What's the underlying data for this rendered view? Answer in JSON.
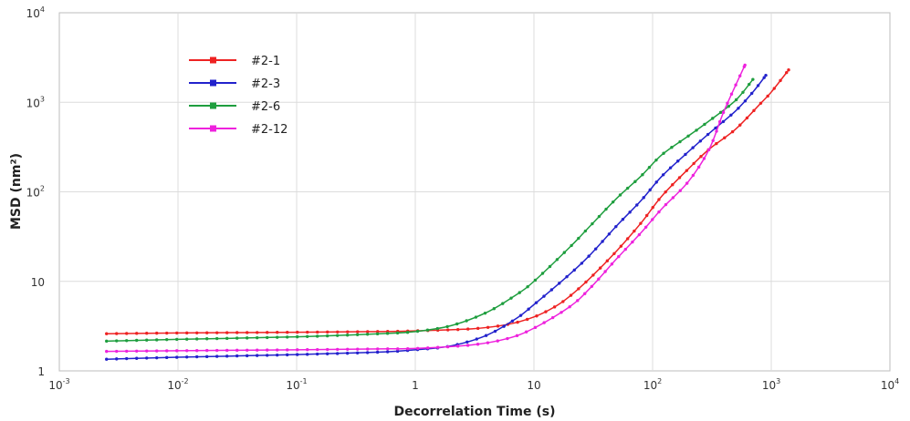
{
  "chart_data": {
    "type": "line",
    "title": "",
    "xlabel": "Decorrelation Time (s)",
    "ylabel": "MSD (nm²)",
    "x_scale": "log",
    "y_scale": "log",
    "xlim": [
      0.001,
      10000
    ],
    "ylim": [
      1,
      10000
    ],
    "grid": true,
    "legend_position": "top-left",
    "x_ticks": [
      {
        "value": 0.001,
        "base": "10",
        "exp": "-3"
      },
      {
        "value": 0.01,
        "base": "10",
        "exp": "-2"
      },
      {
        "value": 0.1,
        "base": "10",
        "exp": "-1"
      },
      {
        "value": 1,
        "base": "1",
        "exp": ""
      },
      {
        "value": 10,
        "base": "10",
        "exp": ""
      },
      {
        "value": 100,
        "base": "10",
        "exp": "2"
      },
      {
        "value": 1000,
        "base": "10",
        "exp": "3"
      },
      {
        "value": 10000,
        "base": "10",
        "exp": "4"
      }
    ],
    "y_ticks": [
      {
        "value": 1,
        "base": "1",
        "exp": ""
      },
      {
        "value": 10,
        "base": "10",
        "exp": ""
      },
      {
        "value": 100,
        "base": "10",
        "exp": "2"
      },
      {
        "value": 1000,
        "base": "10",
        "exp": "3"
      },
      {
        "value": 10000,
        "base": "10",
        "exp": "4"
      }
    ],
    "series": [
      {
        "name": "#2-1",
        "color": "#ee2222",
        "points": [
          [
            0.0025,
            2.6
          ],
          [
            0.01,
            2.65
          ],
          [
            0.1,
            2.7
          ],
          [
            0.5,
            2.75
          ],
          [
            1,
            2.8
          ],
          [
            3,
            2.95
          ],
          [
            6,
            3.3
          ],
          [
            10,
            4.0
          ],
          [
            15,
            5.2
          ],
          [
            20,
            6.8
          ],
          [
            30,
            11
          ],
          [
            50,
            22
          ],
          [
            80,
            45
          ],
          [
            120,
            90
          ],
          [
            200,
            180
          ],
          [
            300,
            300
          ],
          [
            500,
            500
          ],
          [
            800,
            950
          ],
          [
            1000,
            1300
          ],
          [
            1400,
            2300
          ]
        ]
      },
      {
        "name": "#2-3",
        "color": "#2222cc",
        "points": [
          [
            0.0025,
            1.35
          ],
          [
            0.01,
            1.42
          ],
          [
            0.1,
            1.52
          ],
          [
            0.5,
            1.62
          ],
          [
            1,
            1.72
          ],
          [
            2,
            1.9
          ],
          [
            4,
            2.5
          ],
          [
            7,
            3.8
          ],
          [
            10,
            5.5
          ],
          [
            20,
            12
          ],
          [
            30,
            20
          ],
          [
            50,
            42
          ],
          [
            80,
            80
          ],
          [
            120,
            150
          ],
          [
            200,
            280
          ],
          [
            300,
            450
          ],
          [
            500,
            800
          ],
          [
            700,
            1300
          ],
          [
            900,
            2000
          ]
        ]
      },
      {
        "name": "#2-6",
        "color": "#1e9e3e",
        "points": [
          [
            0.0025,
            2.15
          ],
          [
            0.01,
            2.25
          ],
          [
            0.1,
            2.4
          ],
          [
            0.5,
            2.6
          ],
          [
            1,
            2.75
          ],
          [
            2,
            3.2
          ],
          [
            4,
            4.5
          ],
          [
            7,
            7
          ],
          [
            10,
            10
          ],
          [
            20,
            24
          ],
          [
            30,
            42
          ],
          [
            50,
            85
          ],
          [
            80,
            150
          ],
          [
            120,
            260
          ],
          [
            200,
            420
          ],
          [
            300,
            620
          ],
          [
            500,
            1050
          ],
          [
            700,
            1800
          ]
        ]
      },
      {
        "name": "#2-12",
        "color": "#ee22dd",
        "points": [
          [
            0.0025,
            1.65
          ],
          [
            0.01,
            1.68
          ],
          [
            0.1,
            1.72
          ],
          [
            0.5,
            1.76
          ],
          [
            1,
            1.78
          ],
          [
            3,
            1.95
          ],
          [
            6,
            2.3
          ],
          [
            10,
            3.0
          ],
          [
            20,
            5.2
          ],
          [
            30,
            8.5
          ],
          [
            50,
            18
          ],
          [
            80,
            35
          ],
          [
            120,
            65
          ],
          [
            200,
            130
          ],
          [
            300,
            300
          ],
          [
            400,
            800
          ],
          [
            600,
            2600
          ]
        ]
      }
    ]
  }
}
